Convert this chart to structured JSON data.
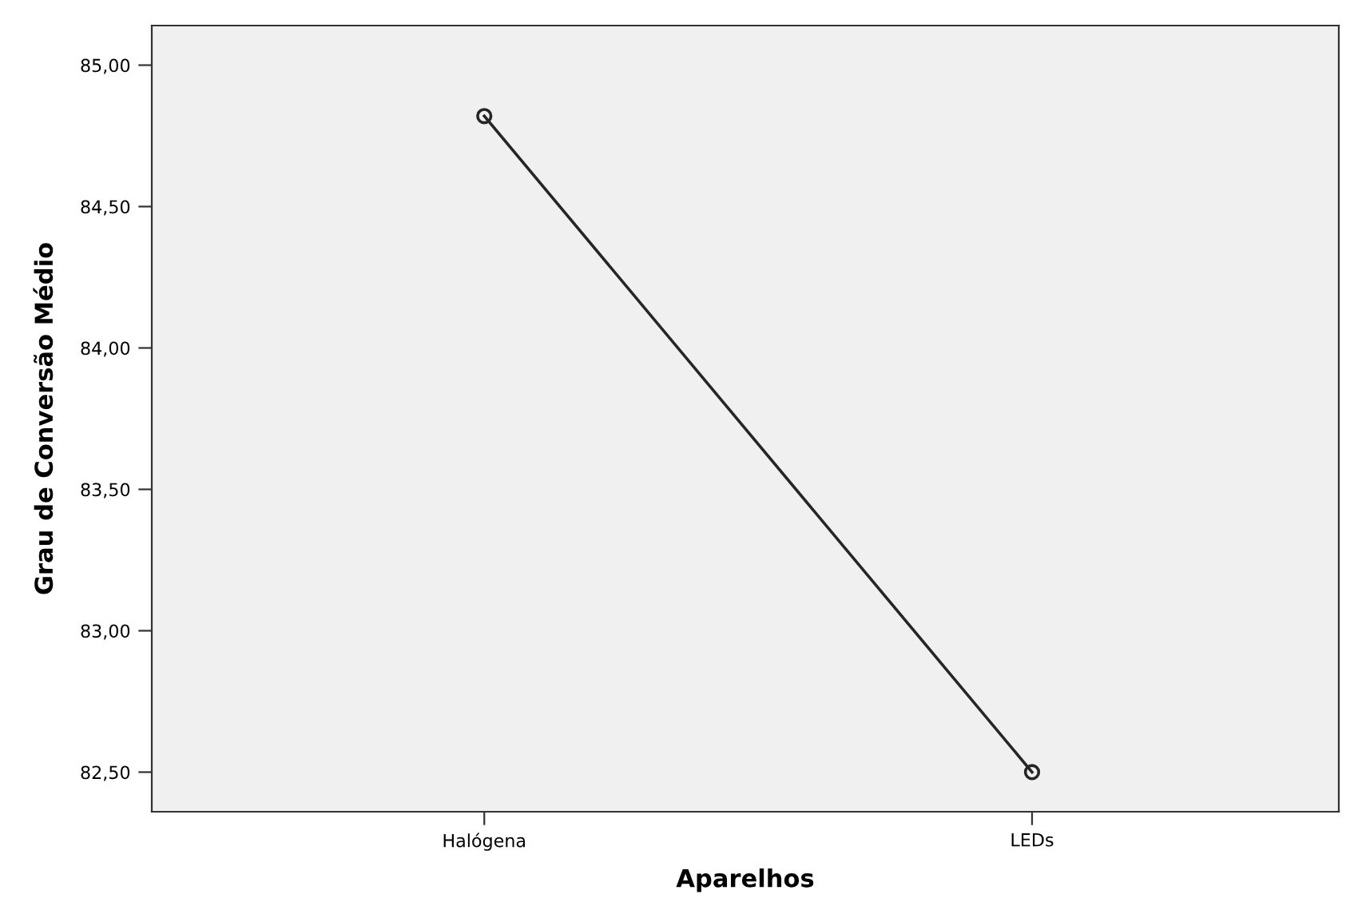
{
  "chart_data": {
    "type": "line",
    "xlabel": "Aparelhos",
    "ylabel": "Grau de Conversão Médio",
    "categories": [
      "Halógena",
      "LEDs"
    ],
    "series": [
      {
        "color": "#262626",
        "values": [
          84.82,
          82.5
        ]
      }
    ],
    "marker": "circle",
    "line_style": "solid",
    "ylim": [
      82.36,
      85.14
    ],
    "yticks": [
      {
        "value": 82.5,
        "label": "82,50"
      },
      {
        "value": 83.0,
        "label": "83,00"
      },
      {
        "value": 83.5,
        "label": "83,50"
      },
      {
        "value": 84.0,
        "label": "84,00"
      },
      {
        "value": 84.5,
        "label": "84,50"
      },
      {
        "value": 85.0,
        "label": "85,00"
      }
    ],
    "grid": false,
    "legend": false
  }
}
